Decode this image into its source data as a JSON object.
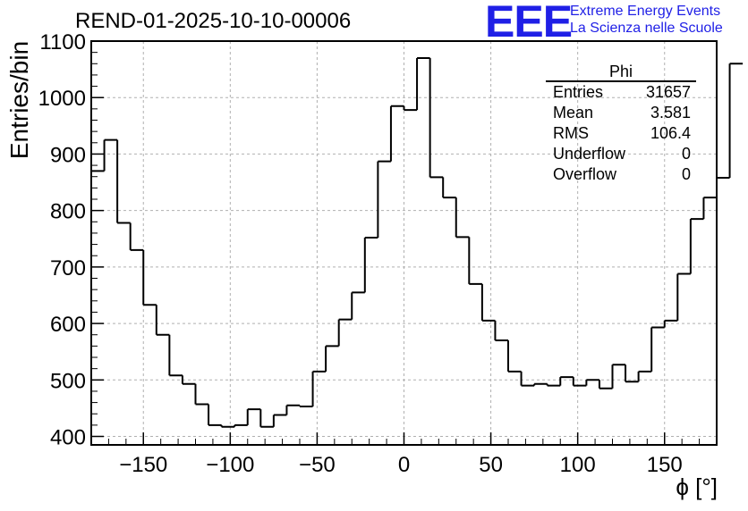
{
  "chart_data": {
    "type": "histogram",
    "title": "REND-01-2025-10-10-00006",
    "xlabel": "ϕ [°]",
    "ylabel": "Entries/bin",
    "xlim": [
      -180,
      180
    ],
    "ylim": [
      385,
      1100
    ],
    "xticks": [
      -150,
      -100,
      -50,
      0,
      50,
      100,
      150
    ],
    "yticks": [
      400,
      500,
      600,
      700,
      800,
      900,
      1000,
      1100
    ],
    "grid": true,
    "bin_edges_start": -180,
    "bin_width": 7.5,
    "values": [
      870,
      925,
      778,
      730,
      633,
      580,
      508,
      493,
      457,
      420,
      417,
      420,
      448,
      417,
      438,
      455,
      453,
      515,
      560,
      607,
      655,
      752,
      887,
      985,
      978,
      1070,
      859,
      823,
      753,
      670,
      605,
      570,
      515,
      490,
      493,
      490,
      505,
      490,
      500,
      485,
      527,
      497,
      515,
      593,
      605,
      688,
      785,
      823,
      858,
      1060
    ],
    "line_color": "#000000"
  },
  "stats": {
    "name": "Phi",
    "rows": [
      {
        "label": "Entries",
        "value": "31657"
      },
      {
        "label": "Mean",
        "value": "3.581"
      },
      {
        "label": "RMS",
        "value": "106.4"
      },
      {
        "label": "Underflow",
        "value": "0"
      },
      {
        "label": "Overflow",
        "value": "0"
      }
    ]
  },
  "logo": {
    "mark": "EEE",
    "line1": "Extreme Energy Events",
    "line2": "La Scienza nelle Scuole"
  },
  "colors": {
    "logo": "#1f1fe6",
    "grid": "#b0b0b0"
  }
}
